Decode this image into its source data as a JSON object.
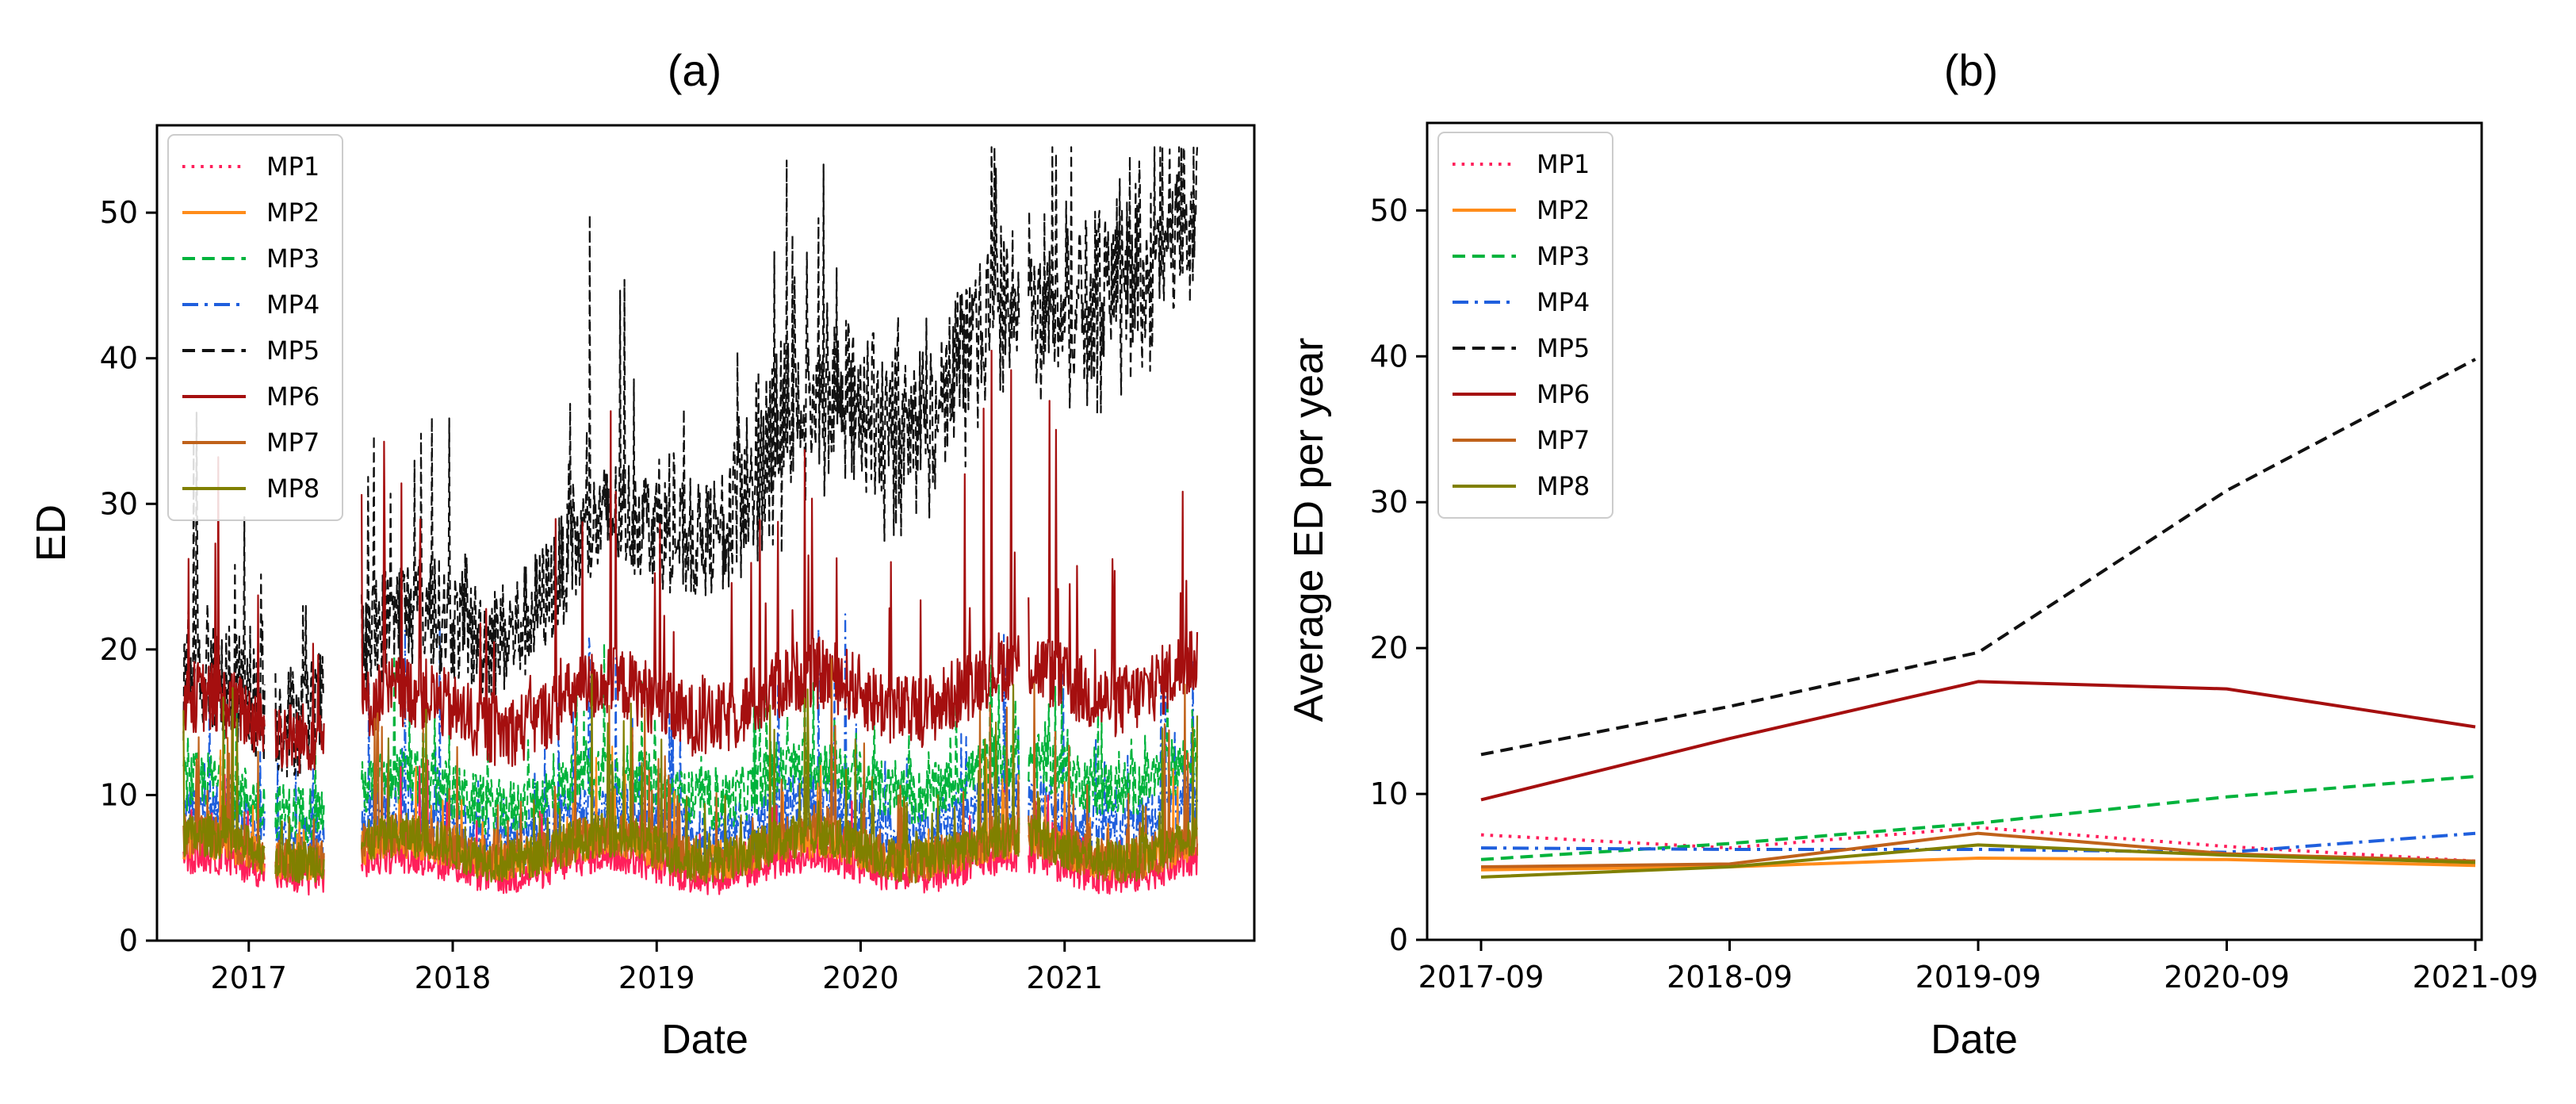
{
  "chart_data": [
    {
      "type": "line",
      "title": "(a)",
      "xlabel": "Date",
      "ylabel": "ED",
      "xlim": [
        2016.55,
        2021.93
      ],
      "ylim": [
        0,
        56
      ],
      "x_ticks": [
        2017,
        2018,
        2019,
        2020,
        2021
      ],
      "x_tick_labels": [
        "2017",
        "2018",
        "2019",
        "2020",
        "2021"
      ],
      "y_ticks": [
        0,
        10,
        20,
        30,
        40,
        50
      ],
      "y_tick_labels": [
        "0",
        "10",
        "20",
        "30",
        "40",
        "50"
      ],
      "legend_position": "top-left",
      "gaps": [
        [
          2017.08,
          2017.13
        ],
        [
          2017.37,
          2017.55
        ],
        [
          2020.78,
          2020.82
        ]
      ],
      "series": [
        {
          "name": "MP1",
          "color": "#ff1f5b",
          "style": "dotted",
          "width": 4,
          "base": 4,
          "amp": 2.5,
          "spike": 4,
          "trend": 0
        },
        {
          "name": "MP2",
          "color": "#ff8c1a",
          "style": "solid",
          "width": 4,
          "base": 5,
          "amp": 2.5,
          "spike": 4,
          "trend": 0
        },
        {
          "name": "MP3",
          "color": "#00b33c",
          "style": "dashed",
          "width": 4,
          "base": 8,
          "amp": 4,
          "spike": 6,
          "trend": 2
        },
        {
          "name": "MP4",
          "color": "#1f5fdd",
          "style": "dashdot",
          "width": 4,
          "base": 6,
          "amp": 4,
          "spike": 9,
          "trend": 1
        },
        {
          "name": "MP5",
          "color": "#111111",
          "style": "dashed",
          "width": 4,
          "base": 12,
          "amp": 8,
          "spike": 12,
          "trend": 34
        },
        {
          "name": "MP6",
          "color": "#a50f0f",
          "style": "solid",
          "width": 5,
          "base": 13,
          "amp": 5,
          "spike": 14,
          "trend": 3
        },
        {
          "name": "MP7",
          "color": "#c0621a",
          "style": "solid",
          "width": 4,
          "base": 5,
          "amp": 3,
          "spike": 8,
          "trend": 0
        },
        {
          "name": "MP8",
          "color": "#808000",
          "style": "solid",
          "width": 4,
          "base": 5,
          "amp": 3,
          "spike": 7,
          "trend": 0
        }
      ]
    },
    {
      "type": "line",
      "title": "(b)",
      "xlabel": "Date",
      "ylabel": "Average ED per year",
      "categories": [
        "2017-09",
        "2018-09",
        "2019-09",
        "2020-09",
        "2021-09"
      ],
      "ylim": [
        0,
        56
      ],
      "y_ticks": [
        0,
        10,
        20,
        30,
        40,
        50
      ],
      "y_tick_labels": [
        "0",
        "10",
        "20",
        "30",
        "40",
        "50"
      ],
      "legend_position": "top-left",
      "series": [
        {
          "name": "MP1",
          "color": "#ff1f5b",
          "style": "dotted",
          "width": 4,
          "values": [
            7.2,
            6.3,
            7.7,
            6.4,
            5.4
          ]
        },
        {
          "name": "MP2",
          "color": "#ff8c1a",
          "style": "solid",
          "width": 4,
          "values": [
            4.8,
            5.0,
            5.6,
            5.5,
            5.1
          ]
        },
        {
          "name": "MP3",
          "color": "#00b33c",
          "style": "dashed",
          "width": 4,
          "values": [
            5.5,
            6.6,
            8.0,
            9.8,
            11.2
          ]
        },
        {
          "name": "MP4",
          "color": "#1f5fdd",
          "style": "dashdot",
          "width": 4,
          "values": [
            6.3,
            6.2,
            6.2,
            6.0,
            7.3
          ]
        },
        {
          "name": "MP5",
          "color": "#111111",
          "style": "dashed",
          "width": 4,
          "values": [
            12.7,
            16.0,
            19.7,
            30.8,
            39.8
          ]
        },
        {
          "name": "MP6",
          "color": "#a50f0f",
          "style": "solid",
          "width": 4,
          "values": [
            9.6,
            13.8,
            17.7,
            17.2,
            14.6
          ]
        },
        {
          "name": "MP7",
          "color": "#c0621a",
          "style": "solid",
          "width": 4,
          "values": [
            5.0,
            5.2,
            7.3,
            5.9,
            5.4
          ]
        },
        {
          "name": "MP8",
          "color": "#808000",
          "style": "solid",
          "width": 4,
          "values": [
            4.3,
            5.0,
            6.5,
            5.8,
            5.3
          ]
        }
      ]
    }
  ]
}
